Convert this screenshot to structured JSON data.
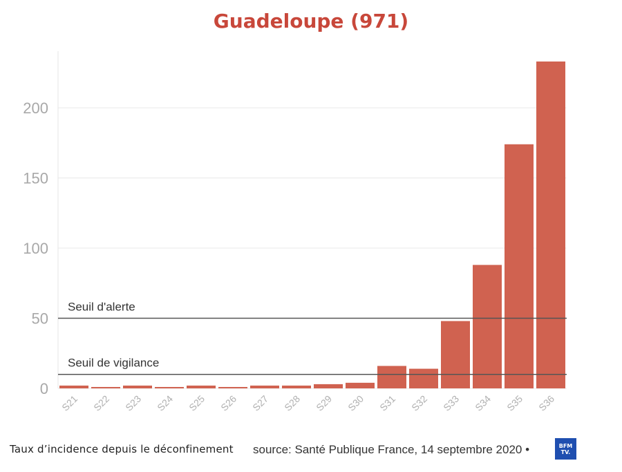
{
  "chart_data": {
    "type": "bar",
    "title": "Guadeloupe (971)",
    "categories": [
      "S21",
      "S22",
      "S23",
      "S24",
      "S25",
      "S26",
      "S27",
      "S28",
      "S29",
      "S30",
      "S31",
      "S32",
      "S33",
      "S34",
      "S35",
      "S36"
    ],
    "values": [
      2,
      1,
      2,
      1,
      2,
      1,
      2,
      2,
      3,
      4,
      16,
      14,
      48,
      88,
      174,
      233
    ],
    "ylim": [
      0,
      233
    ],
    "yticks": [
      0,
      50,
      100,
      150,
      200
    ],
    "grid": true,
    "reference_lines": [
      {
        "label": "Seuil d'alerte",
        "value": 50
      },
      {
        "label": "Seuil de vigilance",
        "value": 10
      }
    ],
    "bar_color": "#d06250",
    "title_color": "#c8473a"
  },
  "caption": {
    "left": "Taux d’incidence depuis le déconfinement",
    "source": "source: Santé Publique France, 14 septembre 2020 •"
  },
  "logo": {
    "line1": "BFM",
    "line2": "TV."
  }
}
